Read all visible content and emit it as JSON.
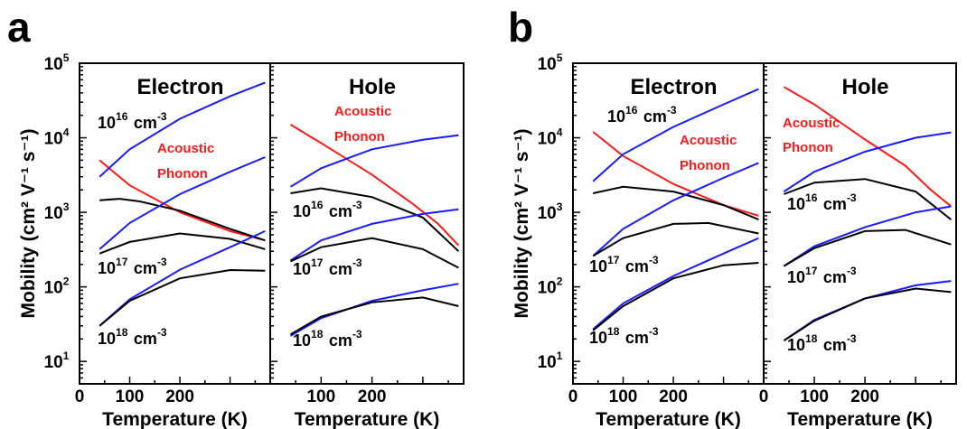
{
  "figure": {
    "panels": [
      {
        "letter": "a"
      },
      {
        "letter": "b"
      }
    ]
  },
  "chart_data": [
    {
      "panel": "a",
      "subplot": "Electron",
      "type": "line",
      "title": "Electron",
      "xlabel": "Temperature (K)",
      "ylabel": "Mobility (cm² V⁻¹ s⁻¹)",
      "x_tick_labels": [
        "0",
        "100",
        "200"
      ],
      "y_tick_labels": [
        "10^1",
        "10^2",
        "10^3",
        "10^4",
        "10^5"
      ],
      "yscale": "log",
      "xlim": [
        0,
        380
      ],
      "ylim": [
        5,
        100000
      ],
      "annotations": [
        "10^16 cm^-3",
        "10^17 cm^-3",
        "10^18 cm^-3",
        "Acoustic",
        "Phonon"
      ],
      "colors": {
        "acoustic": "#ff1a1a",
        "model": "#1a1aff",
        "data": "#000000"
      },
      "series": [
        {
          "role": "acoustic",
          "x": [
            40,
            100,
            200,
            300,
            370
          ],
          "y": [
            5000,
            2300,
            1000,
            560,
            420
          ]
        },
        {
          "role": "model",
          "x": [
            40,
            100,
            200,
            300,
            370
          ],
          "y": [
            3000,
            7000,
            18000,
            36000,
            55000
          ]
        },
        {
          "role": "data",
          "x": [
            40,
            80,
            120,
            200,
            300,
            370
          ],
          "y": [
            1450,
            1520,
            1400,
            1050,
            600,
            420
          ]
        },
        {
          "role": "model",
          "x": [
            40,
            100,
            200,
            300,
            370
          ],
          "y": [
            320,
            720,
            1750,
            3500,
            5500
          ]
        },
        {
          "role": "data",
          "x": [
            40,
            100,
            200,
            300,
            370
          ],
          "y": [
            280,
            400,
            520,
            440,
            320
          ]
        },
        {
          "role": "model",
          "x": [
            40,
            100,
            200,
            300,
            370
          ],
          "y": [
            30,
            68,
            170,
            340,
            560
          ]
        },
        {
          "role": "data",
          "x": [
            40,
            100,
            200,
            300,
            370
          ],
          "y": [
            30,
            65,
            130,
            168,
            165
          ]
        }
      ]
    },
    {
      "panel": "a",
      "subplot": "Hole",
      "type": "line",
      "title": "Hole",
      "xlabel": "Temperature (K)",
      "ylabel": "",
      "x_tick_labels": [
        "100",
        "200"
      ],
      "yscale": "log",
      "xlim": [
        0,
        380
      ],
      "ylim": [
        5,
        100000
      ],
      "annotations": [
        "10^16 cm^-3",
        "10^17 cm^-3",
        "10^18 cm^-3",
        "Acoustic",
        "Phonon"
      ],
      "colors": {
        "acoustic": "#ff1a1a",
        "model": "#1a1aff",
        "data": "#000000"
      },
      "series": [
        {
          "role": "acoustic",
          "x": [
            40,
            100,
            200,
            280,
            330,
            370
          ],
          "y": [
            15000,
            8500,
            3200,
            1300,
            700,
            360
          ]
        },
        {
          "role": "model",
          "x": [
            40,
            100,
            200,
            300,
            370
          ],
          "y": [
            2200,
            3900,
            7000,
            9400,
            10800
          ]
        },
        {
          "role": "data",
          "x": [
            40,
            100,
            200,
            300,
            370
          ],
          "y": [
            1800,
            2100,
            1600,
            850,
            300
          ]
        },
        {
          "role": "model",
          "x": [
            40,
            100,
            200,
            300,
            370
          ],
          "y": [
            225,
            420,
            700,
            950,
            1100
          ]
        },
        {
          "role": "data",
          "x": [
            40,
            100,
            200,
            300,
            370
          ],
          "y": [
            220,
            340,
            450,
            320,
            180
          ]
        },
        {
          "role": "model",
          "x": [
            40,
            100,
            200,
            300,
            370
          ],
          "y": [
            22,
            38,
            65,
            90,
            110
          ]
        },
        {
          "role": "data",
          "x": [
            40,
            100,
            200,
            300,
            370
          ],
          "y": [
            23,
            40,
            62,
            72,
            55
          ]
        }
      ]
    },
    {
      "panel": "b",
      "subplot": "Electron",
      "type": "line",
      "title": "Electron",
      "xlabel": "Temperature (K)",
      "ylabel": "Mobility (cm² V⁻¹ s⁻¹)",
      "x_tick_labels": [
        "0",
        "100",
        "200"
      ],
      "y_tick_labels": [
        "10^1",
        "10^2",
        "10^3",
        "10^4",
        "10^5"
      ],
      "yscale": "log",
      "xlim": [
        0,
        380
      ],
      "ylim": [
        5,
        100000
      ],
      "annotations": [
        "10^16 cm^-3",
        "10^17 cm^-3",
        "10^18 cm^-3",
        "Acoustic",
        "Phonon"
      ],
      "colors": {
        "acoustic": "#ff1a1a",
        "model": "#1a1aff",
        "data": "#000000"
      },
      "series": [
        {
          "role": "acoustic",
          "x": [
            40,
            100,
            200,
            300,
            370
          ],
          "y": [
            12000,
            5700,
            2400,
            1250,
            900
          ]
        },
        {
          "role": "model",
          "x": [
            40,
            100,
            200,
            300,
            370
          ],
          "y": [
            2600,
            6000,
            14000,
            28000,
            45000
          ]
        },
        {
          "role": "data",
          "x": [
            40,
            100,
            200,
            300,
            370
          ],
          "y": [
            1800,
            2200,
            1900,
            1250,
            800
          ]
        },
        {
          "role": "model",
          "x": [
            40,
            100,
            200,
            300,
            370
          ],
          "y": [
            260,
            600,
            1450,
            2900,
            4600
          ]
        },
        {
          "role": "data",
          "x": [
            40,
            100,
            200,
            270,
            370
          ],
          "y": [
            260,
            450,
            700,
            720,
            520
          ]
        },
        {
          "role": "model",
          "x": [
            40,
            100,
            200,
            300,
            370
          ],
          "y": [
            27,
            60,
            140,
            280,
            450
          ]
        },
        {
          "role": "data",
          "x": [
            40,
            100,
            200,
            300,
            370
          ],
          "y": [
            26,
            55,
            130,
            195,
            210
          ]
        }
      ]
    },
    {
      "panel": "b",
      "subplot": "Hole",
      "type": "line",
      "title": "Hole",
      "xlabel": "Temperature (K)",
      "ylabel": "",
      "x_tick_labels": [
        "0",
        "100",
        "200"
      ],
      "yscale": "log",
      "xlim": [
        0,
        380
      ],
      "ylim": [
        5,
        100000
      ],
      "annotations": [
        "10^16 cm^-3",
        "10^17 cm^-3",
        "10^18 cm^-3",
        "Acoustic",
        "Phonon"
      ],
      "colors": {
        "acoustic": "#ff1a1a",
        "model": "#1a1aff",
        "data": "#000000"
      },
      "series": [
        {
          "role": "acoustic",
          "x": [
            40,
            100,
            200,
            280,
            330,
            370
          ],
          "y": [
            48000,
            28000,
            9500,
            4200,
            2000,
            1200
          ]
        },
        {
          "role": "model",
          "x": [
            40,
            100,
            200,
            300,
            370
          ],
          "y": [
            1900,
            3500,
            6500,
            10000,
            11800
          ]
        },
        {
          "role": "data",
          "x": [
            40,
            100,
            200,
            300,
            370
          ],
          "y": [
            1750,
            2500,
            2800,
            1900,
            800
          ]
        },
        {
          "role": "model",
          "x": [
            40,
            100,
            200,
            300,
            370
          ],
          "y": [
            190,
            350,
            630,
            1000,
            1200
          ]
        },
        {
          "role": "data",
          "x": [
            40,
            100,
            200,
            280,
            370
          ],
          "y": [
            190,
            330,
            560,
            580,
            370
          ]
        },
        {
          "role": "model",
          "x": [
            40,
            100,
            200,
            300,
            370
          ],
          "y": [
            19,
            36,
            70,
            105,
            120
          ]
        },
        {
          "role": "data",
          "x": [
            40,
            100,
            200,
            300,
            370
          ],
          "y": [
            19,
            35,
            70,
            95,
            85
          ]
        }
      ]
    }
  ]
}
